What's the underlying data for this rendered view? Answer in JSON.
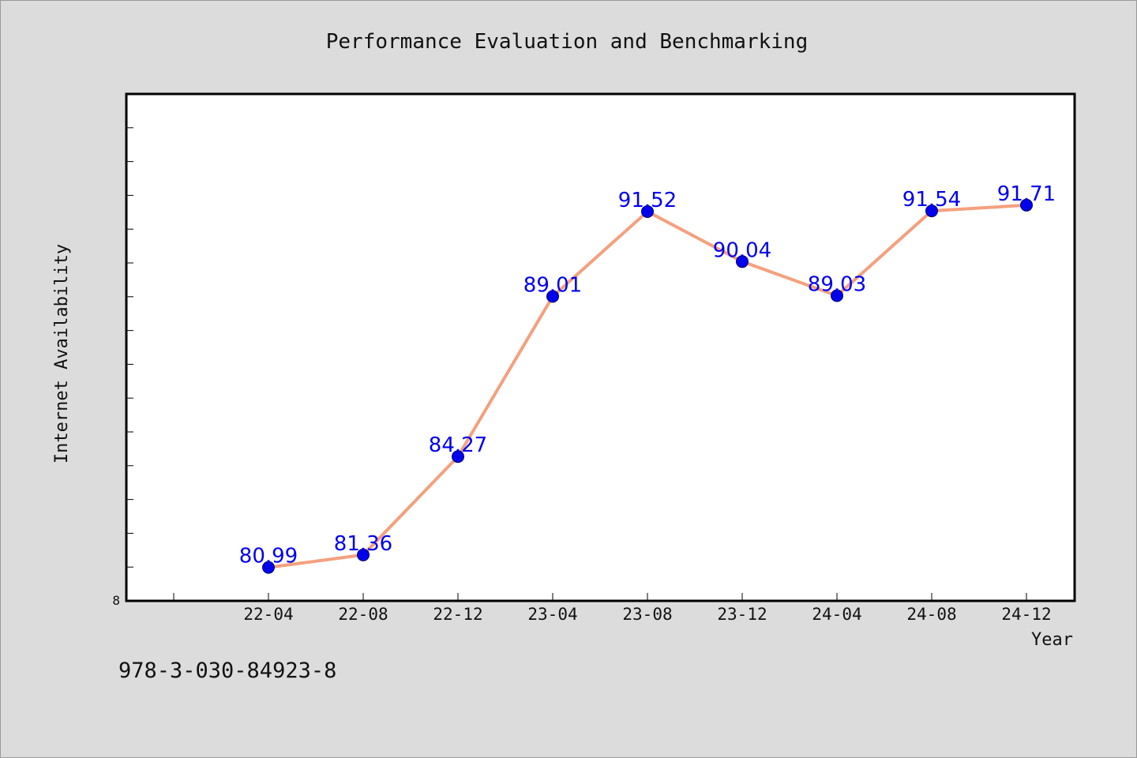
{
  "chart_data": {
    "type": "line",
    "title": "Performance Evaluation and Benchmarking",
    "xlabel": "Year",
    "ylabel": "Internet Availability",
    "categories": [
      "22-04",
      "22-08",
      "22-12",
      "23-04",
      "23-08",
      "23-12",
      "24-04",
      "24-08",
      "24-12"
    ],
    "series": [
      {
        "values": [
          80.99,
          81.36,
          84.27,
          89.01,
          91.52,
          90.04,
          89.03,
          91.54,
          91.71
        ]
      }
    ],
    "y_tick_labels": [
      "8"
    ],
    "ylim": [
      80,
      95
    ],
    "grid": false,
    "legend": false,
    "data_labels": true,
    "colors": {
      "line": "#f4a07e",
      "marker": "#0000ee",
      "label": "#0000ee",
      "plot_bg": "#ffffff",
      "page_bg": "#dcdcdc"
    }
  },
  "identifier": "978-3-030-84923-8"
}
